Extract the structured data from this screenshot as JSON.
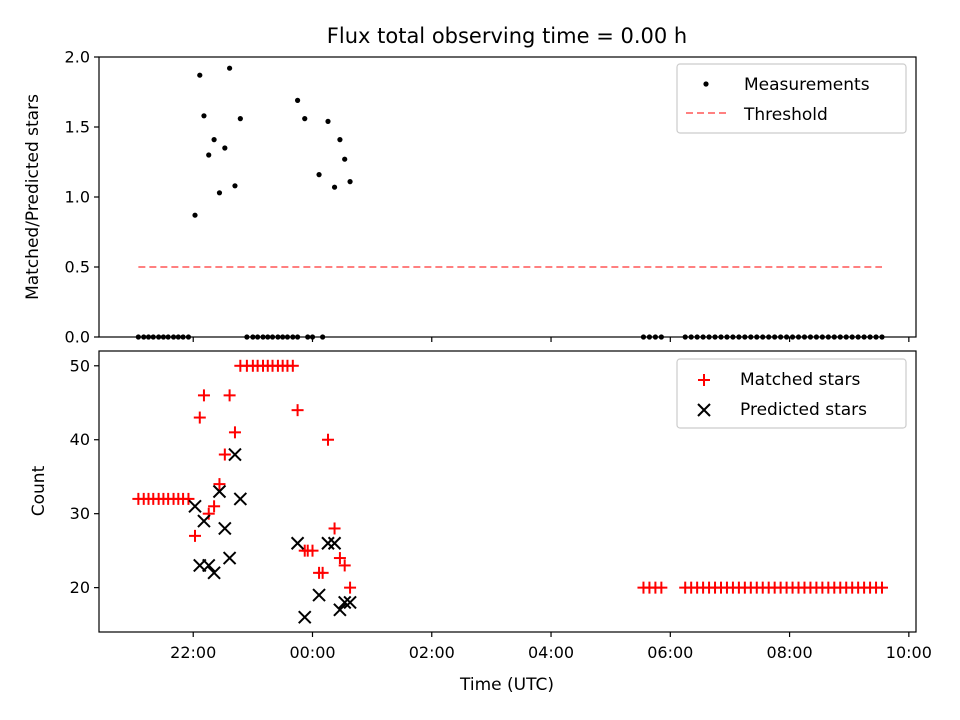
{
  "chart_data": [
    {
      "type": "scatter",
      "title": "Flux total observing time = 0.00 h",
      "xlabel": "",
      "ylabel": "Matched/Predicted stars",
      "xlim": [
        20.42,
        34.12
      ],
      "ylim": [
        0.0,
        2.0
      ],
      "yticks": [
        0.0,
        0.5,
        1.0,
        1.5,
        2.0
      ],
      "ytick_labels": [
        "0.0",
        "0.5",
        "1.0",
        "1.5",
        "2.0"
      ],
      "xticks": [
        22,
        24,
        26,
        28,
        30,
        32,
        34
      ],
      "legend": {
        "position": "top-right"
      },
      "series": [
        {
          "name": "Measurements",
          "kind": "points",
          "color": "#000000",
          "x": [
            22.03,
            22.11,
            22.18,
            22.26,
            22.35,
            22.44,
            22.53,
            22.61,
            22.7,
            22.79,
            23.75,
            23.87,
            24.11,
            24.26,
            24.37,
            24.46,
            24.54,
            24.63
          ],
          "y": [
            0.87,
            1.87,
            1.58,
            1.3,
            1.41,
            1.03,
            1.35,
            1.92,
            1.08,
            1.56,
            1.69,
            1.56,
            1.16,
            1.54,
            1.07,
            1.41,
            1.27,
            1.11
          ]
        },
        {
          "name": "",
          "kind": "points",
          "color": "#000000",
          "x": [
            21.08,
            21.17,
            21.25,
            21.33,
            21.42,
            21.5,
            21.58,
            21.67,
            21.75,
            21.83,
            21.92,
            22.9,
            23.0,
            23.08,
            23.17,
            23.25,
            23.33,
            23.42,
            23.5,
            23.58,
            23.67,
            23.75,
            23.92,
            24.0,
            24.17,
            29.55,
            29.65,
            29.75,
            29.85,
            30.25,
            30.35,
            30.45,
            30.55,
            30.65,
            30.75,
            30.85,
            30.95,
            31.05,
            31.15,
            31.25,
            31.35,
            31.45,
            31.55,
            31.65,
            31.75,
            31.85,
            31.95,
            32.05,
            32.15,
            32.25,
            32.35,
            32.45,
            32.55,
            32.65,
            32.75,
            32.85,
            32.95,
            33.05,
            33.15,
            33.25,
            33.35,
            33.45,
            33.55
          ],
          "y": [
            0,
            0,
            0,
            0,
            0,
            0,
            0,
            0,
            0,
            0,
            0,
            0,
            0,
            0,
            0,
            0,
            0,
            0,
            0,
            0,
            0,
            0,
            0,
            0,
            0,
            0,
            0,
            0,
            0,
            0,
            0,
            0,
            0,
            0,
            0,
            0,
            0,
            0,
            0,
            0,
            0,
            0,
            0,
            0,
            0,
            0,
            0,
            0,
            0,
            0,
            0,
            0,
            0,
            0,
            0,
            0,
            0,
            0,
            0,
            0,
            0,
            0,
            0
          ]
        },
        {
          "name": "Threshold",
          "kind": "dashed-line",
          "color": "#ff8080",
          "x": [
            21.08,
            33.55
          ],
          "y": [
            0.5,
            0.5
          ]
        }
      ]
    },
    {
      "type": "scatter",
      "title": "",
      "xlabel": "Time (UTC)",
      "ylabel": "Count",
      "xlim": [
        20.42,
        34.12
      ],
      "ylim": [
        14.0,
        52.0
      ],
      "yticks": [
        20,
        30,
        40,
        50
      ],
      "ytick_labels": [
        "20",
        "30",
        "40",
        "50"
      ],
      "xticks": [
        22,
        24,
        26,
        28,
        30,
        32,
        34
      ],
      "xtick_labels": [
        "22:00",
        "00:00",
        "02:00",
        "04:00",
        "06:00",
        "08:00",
        "10:00"
      ],
      "legend": {
        "position": "top-right"
      },
      "series": [
        {
          "name": "Matched stars",
          "kind": "plus",
          "color": "#ff0000",
          "x": [
            21.08,
            21.17,
            21.25,
            21.33,
            21.42,
            21.5,
            21.58,
            21.67,
            21.75,
            21.83,
            21.92,
            22.03,
            22.11,
            22.18,
            22.26,
            22.35,
            22.44,
            22.53,
            22.61,
            22.7,
            22.79,
            22.9,
            23.0,
            23.08,
            23.17,
            23.25,
            23.33,
            23.42,
            23.5,
            23.58,
            23.67,
            23.75,
            23.87,
            23.92,
            24.0,
            24.11,
            24.17,
            24.26,
            24.37,
            24.46,
            24.54,
            24.63,
            29.55,
            29.65,
            29.75,
            29.85,
            30.25,
            30.35,
            30.45,
            30.55,
            30.65,
            30.75,
            30.85,
            30.95,
            31.05,
            31.15,
            31.25,
            31.35,
            31.45,
            31.55,
            31.65,
            31.75,
            31.85,
            31.95,
            32.05,
            32.15,
            32.25,
            32.35,
            32.45,
            32.55,
            32.65,
            32.75,
            32.85,
            32.95,
            33.05,
            33.15,
            33.25,
            33.35,
            33.45,
            33.55
          ],
          "y": [
            32,
            32,
            32,
            32,
            32,
            32,
            32,
            32,
            32,
            32,
            32,
            27,
            43,
            46,
            30,
            31,
            34,
            38,
            46,
            41,
            50,
            50,
            50,
            50,
            50,
            50,
            50,
            50,
            50,
            50,
            50,
            44,
            25,
            25,
            25,
            22,
            22,
            40,
            28,
            24,
            23,
            20,
            20,
            20,
            20,
            20,
            20,
            20,
            20,
            20,
            20,
            20,
            20,
            20,
            20,
            20,
            20,
            20,
            20,
            20,
            20,
            20,
            20,
            20,
            20,
            20,
            20,
            20,
            20,
            20,
            20,
            20,
            20,
            20,
            20,
            20,
            20,
            20,
            20,
            20
          ]
        },
        {
          "name": "Predicted stars",
          "kind": "x",
          "color": "#000000",
          "x": [
            22.03,
            22.11,
            22.18,
            22.26,
            22.35,
            22.44,
            22.53,
            22.61,
            22.7,
            22.79,
            23.75,
            23.87,
            24.11,
            24.26,
            24.37,
            24.46,
            24.54,
            24.63
          ],
          "y": [
            31,
            23,
            29,
            23,
            22,
            33,
            28,
            24,
            38,
            32,
            26,
            16,
            19,
            26,
            26,
            17,
            18,
            18
          ]
        }
      ]
    }
  ]
}
